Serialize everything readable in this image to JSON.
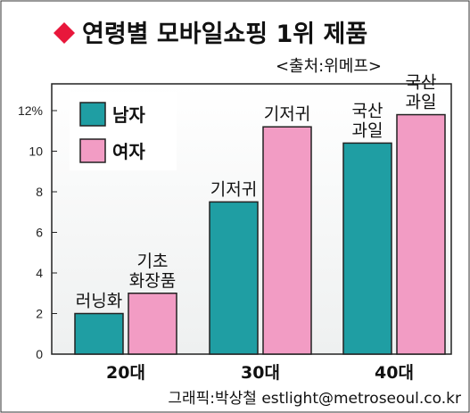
{
  "title": "연령별 모바일쇼핑 1위 제품",
  "source": "<출처:위메프>",
  "credit": "그래픽:박상철 estlight@metroseoul.co.kr",
  "colors": {
    "male": "#1f9ea3",
    "female": "#f29cc4",
    "bullet": "#e8173b",
    "background": "#ffffff",
    "frame": "#222222"
  },
  "chart_data": {
    "type": "bar",
    "categories": [
      "20대",
      "30대",
      "40대"
    ],
    "yticks": [
      "0",
      "2",
      "4",
      "6",
      "8",
      "10",
      "12%"
    ],
    "ylim": [
      0,
      12
    ],
    "grid": false,
    "legend": "top-left",
    "series": [
      {
        "name": "남자",
        "values": [
          2.0,
          7.5,
          10.4
        ],
        "labels": [
          [
            "러닝화"
          ],
          [
            "기저귀"
          ],
          [
            "국산",
            "과일"
          ]
        ]
      },
      {
        "name": "여자",
        "values": [
          3.0,
          11.2,
          11.8
        ],
        "labels": [
          [
            "기초",
            "화장품"
          ],
          [
            "기저귀"
          ],
          [
            "국산",
            "과일"
          ]
        ]
      }
    ]
  }
}
